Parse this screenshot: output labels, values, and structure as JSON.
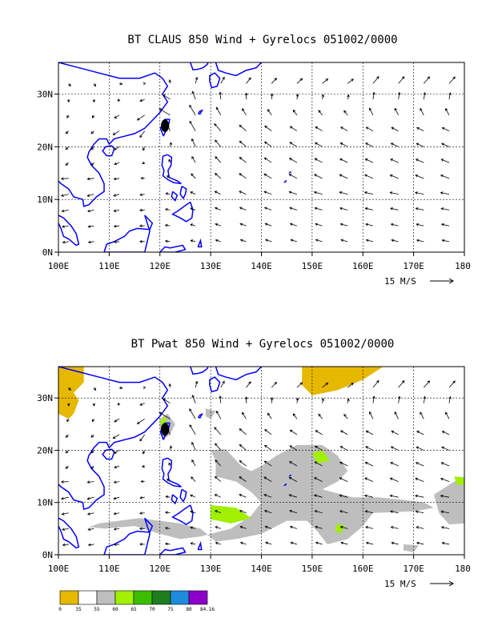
{
  "chart_data": [
    {
      "type": "map",
      "title": "BT CLAUS 850 Wind + Gyrelocs 051002/0000",
      "x_ticks": [
        "100E",
        "110E",
        "120E",
        "130E",
        "140E",
        "150E",
        "160E",
        "170E",
        "180"
      ],
      "y_ticks": [
        "0N",
        "10N",
        "20N",
        "30N"
      ],
      "lon_range": [
        100,
        180
      ],
      "lat_range": [
        0,
        36
      ],
      "vector_scale_label": "15 M/S",
      "gyre_location": {
        "lon": 121,
        "lat": 24
      },
      "shading": false
    },
    {
      "type": "map",
      "title": "BT Pwat 850 Wind + Gyrelocs 051002/0000",
      "x_ticks": [
        "100E",
        "110E",
        "120E",
        "130E",
        "140E",
        "150E",
        "160E",
        "170E",
        "180"
      ],
      "y_ticks": [
        "0N",
        "10N",
        "20N",
        "30N"
      ],
      "lon_range": [
        100,
        180
      ],
      "lat_range": [
        0,
        36
      ],
      "vector_scale_label": "15 M/S",
      "gyre_location": {
        "lon": 121,
        "lat": 24
      },
      "shading": true,
      "colorbar": {
        "labels": [
          "0",
          "35",
          "55",
          "60",
          "65",
          "70",
          "75",
          "80",
          "84.16"
        ],
        "colors": [
          "#e6b800",
          "#ffffff",
          "#bebebe",
          "#a0f000",
          "#3cbe00",
          "#1e7d1e",
          "#1e8cdc",
          "#8c00c8"
        ]
      }
    }
  ]
}
